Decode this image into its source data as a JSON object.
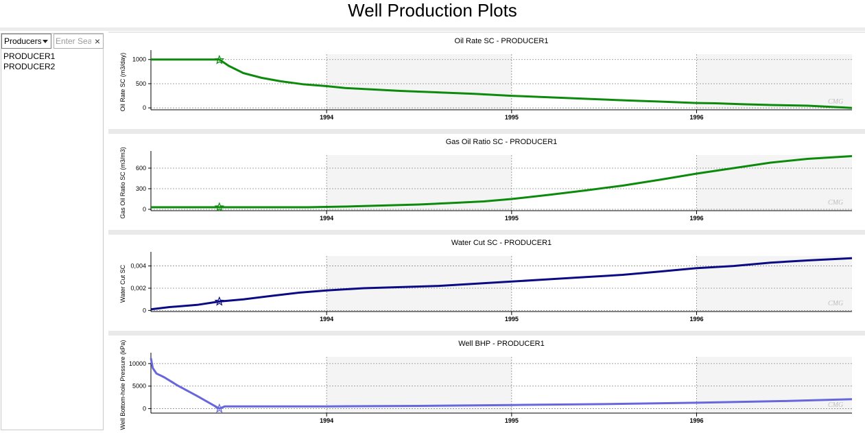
{
  "page": {
    "title": "Well Production Plots"
  },
  "sidebar": {
    "well_select": {
      "value": "Producers",
      "options": [
        "Producers"
      ]
    },
    "search": {
      "placeholder": "Enter Search",
      "value": "",
      "clear_icon": "close-icon"
    },
    "wells": [
      "PRODUCER1",
      "PRODUCER2"
    ]
  },
  "watermark": "CMG",
  "chart_data": [
    {
      "type": "line",
      "title": "Oil Rate SC - PRODUCER1",
      "ylabel": "Oil Rate SC (m3/day)",
      "xlabel": "",
      "xlim": [
        1993.05,
        1996.84
      ],
      "ylim": [
        -40,
        1110
      ],
      "yticks": [
        0,
        500,
        1000
      ],
      "ytick_labels": [
        "0",
        "500",
        "1000"
      ],
      "xticks": [
        1994,
        1995,
        1996
      ],
      "xtick_labels": [
        "1994",
        "1995",
        "1996"
      ],
      "grid": true,
      "shaded_years": [
        1994,
        1996
      ],
      "color": "#0c8a0c",
      "x": [
        1993.05,
        1993.42,
        1993.47,
        1993.55,
        1993.65,
        1993.75,
        1993.87,
        1994.0,
        1994.1,
        1994.25,
        1994.4,
        1994.6,
        1994.8,
        1995.0,
        1995.2,
        1995.45,
        1995.65,
        1995.8,
        1996.0,
        1996.1,
        1996.25,
        1996.4,
        1996.6,
        1996.84
      ],
      "y": [
        1000,
        1000,
        870,
        720,
        620,
        550,
        490,
        450,
        410,
        380,
        350,
        320,
        290,
        250,
        220,
        180,
        150,
        130,
        100,
        95,
        75,
        60,
        45,
        0
      ],
      "marker": {
        "x": 1993.42,
        "y": 990,
        "shape": "star"
      }
    },
    {
      "type": "line",
      "title": "Gas Oil Ratio SC - PRODUCER1",
      "ylabel": "Gas Oil Ratio SC (m3/m3)",
      "xlabel": "",
      "xlim": [
        1993.05,
        1996.84
      ],
      "ylim": [
        -20,
        790
      ],
      "yticks": [
        0,
        300,
        600
      ],
      "ytick_labels": [
        "0",
        "300",
        "600"
      ],
      "xticks": [
        1994,
        1995,
        1996
      ],
      "xtick_labels": [
        "1994",
        "1995",
        "1996"
      ],
      "grid": true,
      "shaded_years": [
        1994,
        1996
      ],
      "color": "#0c8a0c",
      "x": [
        1993.05,
        1993.42,
        1993.9,
        1994.1,
        1994.3,
        1994.5,
        1994.7,
        1994.85,
        1995.0,
        1995.2,
        1995.4,
        1995.6,
        1995.8,
        1996.0,
        1996.2,
        1996.4,
        1996.6,
        1996.84
      ],
      "y": [
        30,
        30,
        30,
        40,
        55,
        70,
        95,
        115,
        150,
        210,
        275,
        345,
        430,
        520,
        600,
        680,
        735,
        775
      ],
      "marker": {
        "x": 1993.42,
        "y": 30,
        "shape": "star"
      }
    },
    {
      "type": "line",
      "title": "Water Cut SC - PRODUCER1",
      "ylabel": "Water Cut SC",
      "xlabel": "",
      "xlim": [
        1993.05,
        1996.84
      ],
      "ylim": [
        -0.0001,
        0.0049
      ],
      "yticks": [
        0,
        0.002,
        0.004
      ],
      "ytick_labels": [
        "0",
        "0,002",
        "0,004"
      ],
      "xticks": [
        1994,
        1995,
        1996
      ],
      "xtick_labels": [
        "1994",
        "1995",
        "1996"
      ],
      "grid": true,
      "shaded_years": [
        1994,
        1996
      ],
      "color": "#0a0a84",
      "x": [
        1993.05,
        1993.15,
        1993.3,
        1993.42,
        1993.55,
        1993.7,
        1993.85,
        1994.0,
        1994.2,
        1994.4,
        1994.6,
        1994.8,
        1995.0,
        1995.2,
        1995.4,
        1995.6,
        1995.8,
        1996.0,
        1996.2,
        1996.4,
        1996.6,
        1996.84
      ],
      "y": [
        0.0001,
        0.0003,
        0.0005,
        0.0008,
        0.001,
        0.0013,
        0.0016,
        0.0018,
        0.002,
        0.0021,
        0.0022,
        0.0024,
        0.0026,
        0.0028,
        0.003,
        0.0032,
        0.0035,
        0.0038,
        0.004,
        0.0043,
        0.0045,
        0.0047
      ],
      "marker": {
        "x": 1993.42,
        "y": 0.0008,
        "shape": "star"
      }
    },
    {
      "type": "line",
      "title": "Well BHP - PRODUCER1",
      "ylabel": "Well Bottom-hole Pressure (kPa)",
      "xlabel": "",
      "xlim": [
        1993.05,
        1996.84
      ],
      "ylim": [
        -1000,
        11500
      ],
      "yticks": [
        0,
        5000,
        10000
      ],
      "ytick_labels": [
        "0",
        "5000",
        "10000"
      ],
      "xticks": [
        1994,
        1995,
        1996
      ],
      "xtick_labels": [
        "1994",
        "1995",
        "1996"
      ],
      "grid": true,
      "shaded_years": [
        1994,
        1996
      ],
      "color": "#6666dd",
      "x": [
        1993.05,
        1993.06,
        1993.08,
        1993.12,
        1993.2,
        1993.3,
        1993.42,
        1993.45,
        1993.6,
        1994.0,
        1994.5,
        1995.0,
        1995.5,
        1996.0,
        1996.5,
        1996.84
      ],
      "y": [
        11200,
        9000,
        7800,
        7000,
        5000,
        2800,
        0,
        500,
        500,
        500,
        600,
        800,
        1000,
        1300,
        1700,
        2100
      ],
      "marker": {
        "x": 1993.42,
        "y": 0,
        "shape": "star"
      }
    }
  ]
}
